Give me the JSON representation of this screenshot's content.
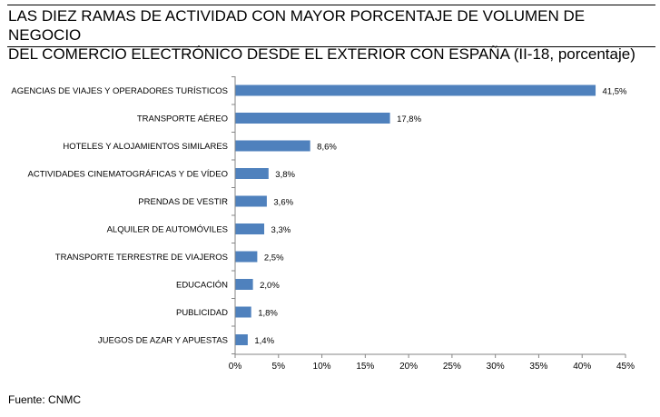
{
  "chart_data": {
    "type": "bar",
    "orientation": "horizontal",
    "title_lines": [
      "LAS DIEZ RAMAS DE ACTIVIDAD CON MAYOR PORCENTAJE DE VOLUMEN DE NEGOCIO",
      "DEL COMERCIO ELECTRÓNICO DESDE EL EXTERIOR CON ESPAÑA (II-18, porcentaje)"
    ],
    "categories": [
      "AGENCIAS DE VIAJES Y OPERADORES TURÍSTICOS",
      "TRANSPORTE AÉREO",
      "HOTELES  Y ALOJAMIENTOS SIMILARES",
      "ACTIVIDADES CINEMATOGRÁFICAS Y DE VÍDEO",
      "PRENDAS DE VESTIR",
      "ALQUILER DE AUTOMÓVILES",
      "TRANSPORTE TERRESTRE DE VIAJEROS",
      "EDUCACIÓN",
      "PUBLICIDAD",
      "JUEGOS DE AZAR Y APUESTAS"
    ],
    "values": [
      41.5,
      17.8,
      8.6,
      3.8,
      3.6,
      3.3,
      2.5,
      2.0,
      1.8,
      1.4
    ],
    "data_labels": [
      "41,5%",
      "17,8%",
      "8,6%",
      "3,8%",
      "3,6%",
      "3,3%",
      "2,5%",
      "2,0%",
      "1,8%",
      "1,4%"
    ],
    "xticks": [
      0,
      5,
      10,
      15,
      20,
      25,
      30,
      35,
      40,
      45
    ],
    "xtick_labels": [
      "0%",
      "5%",
      "10%",
      "15%",
      "20%",
      "25%",
      "30%",
      "35%",
      "40%",
      "45%"
    ],
    "xlim": [
      0,
      45
    ],
    "xlabel": "",
    "ylabel": "",
    "grid": false,
    "legend": "none",
    "bar_color": "#4F81BD"
  },
  "source": "Fuente: CNMC"
}
